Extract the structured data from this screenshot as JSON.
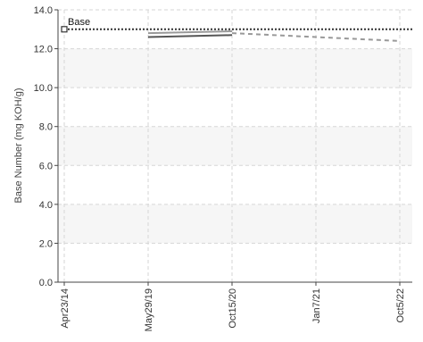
{
  "chart_data": {
    "type": "line",
    "ylabel": "Base Number (mg KOH/g)",
    "xlabel": "",
    "ylim": [
      0,
      14
    ],
    "y_ticks": [
      0,
      2,
      4,
      6,
      8,
      10,
      12,
      14
    ],
    "y_tick_labels": [
      "0.0",
      "2.0",
      "4.0",
      "6.0",
      "8.0",
      "10.0",
      "12.0",
      "14.0"
    ],
    "x_ticks": [
      {
        "label": "Apr23/14",
        "date": "2014-04-23"
      },
      {
        "label": "May29/19",
        "date": "2019-05-29"
      },
      {
        "label": "Oct15/20",
        "date": "2020-10-15"
      },
      {
        "label": "Jan7/21",
        "date": "2021-01-07"
      },
      {
        "label": "Oct5/22",
        "date": "2022-10-05"
      }
    ],
    "grid": true,
    "background_bands": true,
    "reference_line": {
      "label": "Base",
      "value": 13.0,
      "style": "dotted",
      "marker": "open-square",
      "color": "#333333"
    },
    "series": [
      {
        "style": "solid",
        "color": "#555555",
        "points": [
          {
            "x": "2019-05-29",
            "y": 12.6
          },
          {
            "x": "2020-10-15",
            "y": 12.7
          }
        ]
      },
      {
        "style": "solid",
        "color": "#999999",
        "points": [
          {
            "x": "2019-05-29",
            "y": 12.8
          },
          {
            "x": "2020-10-15",
            "y": 12.9
          }
        ]
      },
      {
        "style": "dashed",
        "color": "#999999",
        "points": [
          {
            "x": "2020-10-15",
            "y": 12.8
          },
          {
            "x": "2021-01-07",
            "y": 12.6
          },
          {
            "x": "2022-10-05",
            "y": 12.4
          }
        ]
      }
    ]
  }
}
